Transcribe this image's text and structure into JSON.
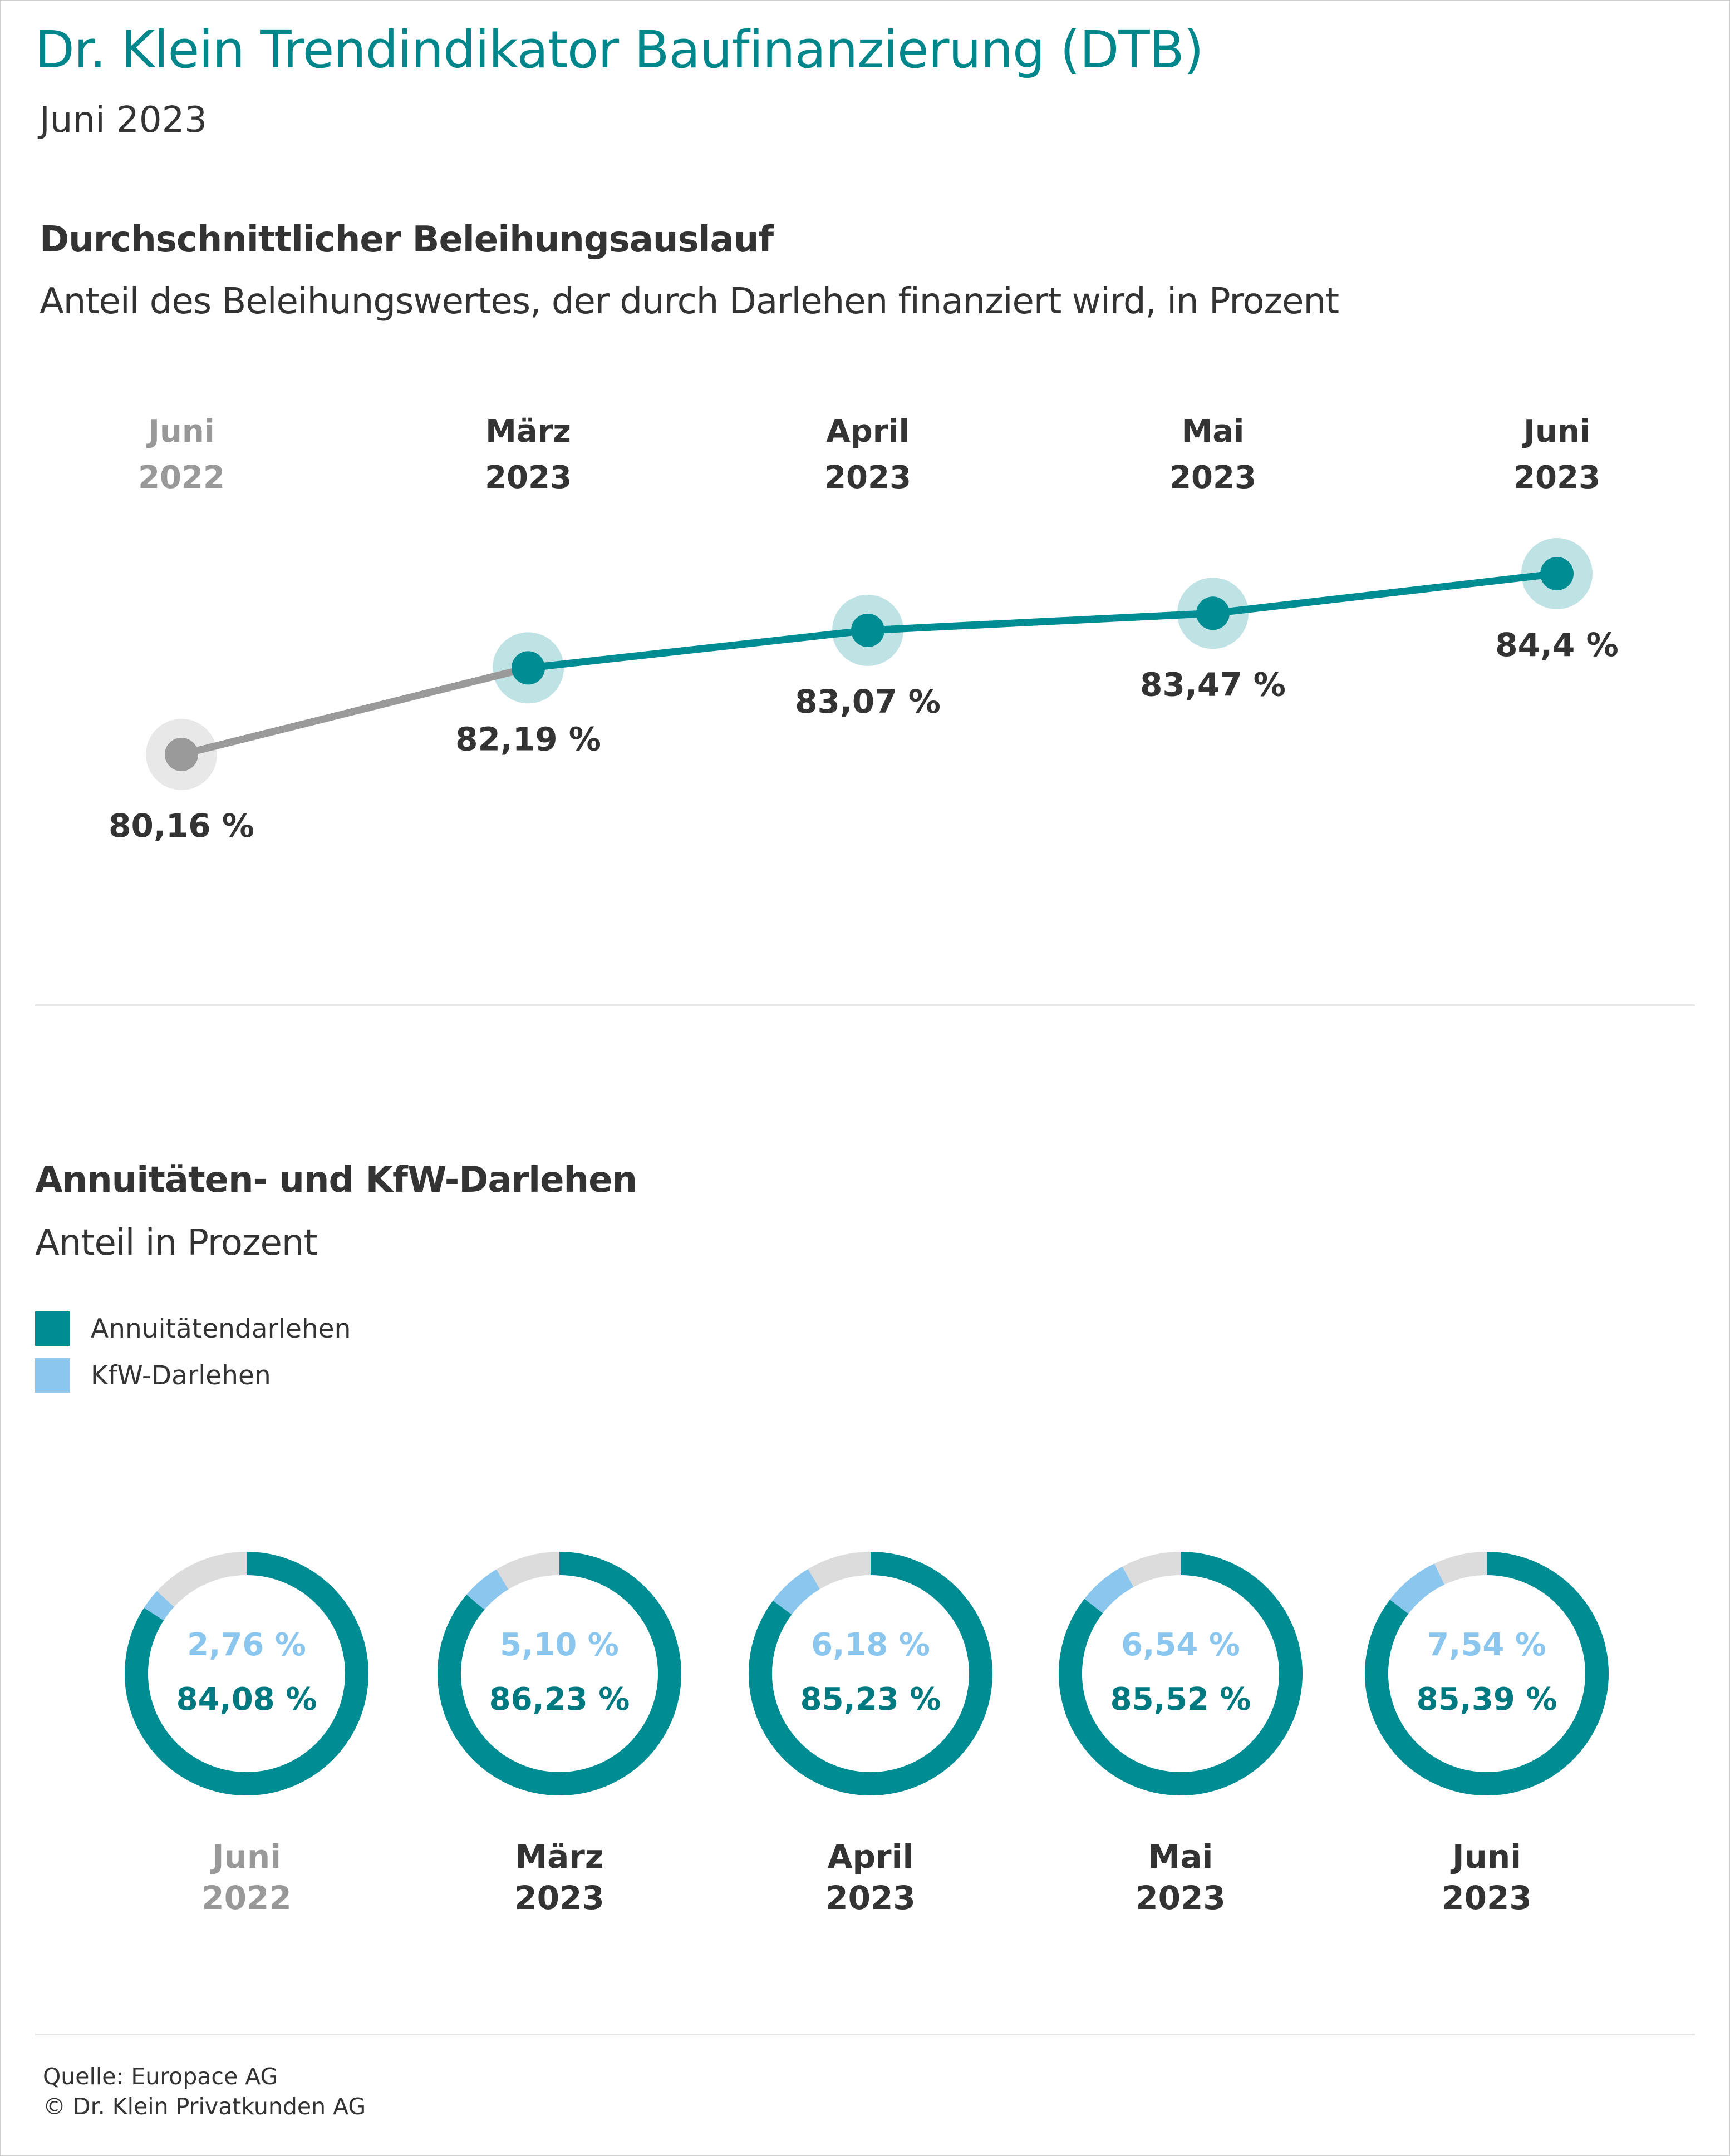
{
  "header": {
    "title": "Dr. Klein Trendindikator Baufinanzierung (DTB)",
    "subtitle": "Juni 2023"
  },
  "colors": {
    "teal": "#008c93",
    "teal_halo": "#bfe2e4",
    "gray_line": "#9a9a9a",
    "gray_halo": "#e8e8e8",
    "kfw_blue": "#8ac6ee",
    "remainder_gray": "#dcdcdc",
    "current_label": "#333333",
    "past_label": "#999999"
  },
  "section1": {
    "title": "Durchschnittlicher Beleihungsauslauf",
    "subtitle": "Anteil des Beleihungswertes, der durch Darlehen finanziert wird, in Prozent"
  },
  "section2": {
    "title": "Annuitäten- und KfW-Darlehen",
    "subtitle": "Anteil in Prozent",
    "legend": [
      {
        "label": "Annuitätendarlehen",
        "color": "#008c93"
      },
      {
        "label": "KfW-Darlehen",
        "color": "#8ac6ee"
      }
    ]
  },
  "footer": {
    "source": "Quelle: Europace AG",
    "copyright": "© Dr. Klein Privatkunden AG"
  },
  "chart_data": [
    {
      "type": "line",
      "title": "Durchschnittlicher Beleihungsauslauf",
      "categories": [
        {
          "month": "Juni",
          "year": "2022",
          "past": true
        },
        {
          "month": "März",
          "year": "2023",
          "past": false
        },
        {
          "month": "April",
          "year": "2023",
          "past": false
        },
        {
          "month": "Mai",
          "year": "2023",
          "past": false
        },
        {
          "month": "Juni",
          "year": "2023",
          "past": false
        }
      ],
      "values": [
        80.16,
        82.19,
        83.07,
        83.47,
        84.4
      ],
      "labels": [
        "80,16 %",
        "82,19 %",
        "83,07 %",
        "83,47 %",
        "84,4 %"
      ],
      "grid": false
    },
    {
      "type": "pie",
      "title": "Annuitäten- und KfW-Darlehen",
      "categories": [
        {
          "month": "Juni",
          "year": "2022",
          "past": true
        },
        {
          "month": "März",
          "year": "2023",
          "past": false
        },
        {
          "month": "April",
          "year": "2023",
          "past": false
        },
        {
          "month": "Mai",
          "year": "2023",
          "past": false
        },
        {
          "month": "Juni",
          "year": "2023",
          "past": false
        }
      ],
      "series": [
        {
          "name": "Annuitätendarlehen",
          "values": [
            84.08,
            86.23,
            85.23,
            85.52,
            85.39
          ],
          "labels": [
            "84,08 %",
            "86,23 %",
            "85,23 %",
            "85,52 %",
            "85,39 %"
          ]
        },
        {
          "name": "KfW-Darlehen",
          "values": [
            2.76,
            5.1,
            6.18,
            6.54,
            7.54
          ],
          "labels": [
            "2,76 %",
            "5,10 %",
            "6,18 %",
            "6,54 %",
            "7,54 %"
          ]
        }
      ]
    }
  ]
}
